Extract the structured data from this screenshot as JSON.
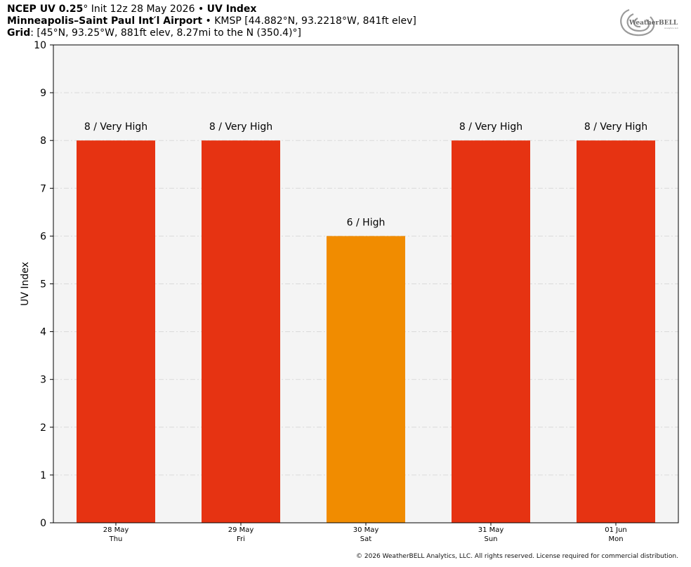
{
  "header": {
    "line1": {
      "model": "NCEP UV 0.25",
      "deg": "°",
      "init": " Init 12z 28 May 2026 • ",
      "product": "UV Index"
    },
    "line2": {
      "station": "Minneapolis–Saint Paul Int′l Airport",
      "info": " • KMSP [44.882°N, 93.2218°W, 841ft elev]"
    },
    "line3": {
      "label": "Grid",
      "info": ": [45°N, 93.25°W, 881ft elev, 8.27mi to the N (350.4)°]"
    }
  },
  "logo": {
    "text": "WeatherBELL",
    "sub": "Analytics LLC"
  },
  "copyright": "© 2026 WeatherBELL Analytics, LLC. All rights reserved. License required for commercial distribution.",
  "chart_data": {
    "type": "bar",
    "ylabel": "UV Index",
    "ylim": [
      0,
      10
    ],
    "yticks": [
      0,
      1,
      2,
      3,
      4,
      5,
      6,
      7,
      8,
      9,
      10
    ],
    "grid": true,
    "categories": [
      {
        "date": "28 May",
        "day": "Thu"
      },
      {
        "date": "29 May",
        "day": "Fri"
      },
      {
        "date": "30 May",
        "day": "Sat"
      },
      {
        "date": "31 May",
        "day": "Sun"
      },
      {
        "date": "01 Jun",
        "day": "Mon"
      }
    ],
    "values": [
      8,
      8,
      6,
      8,
      8
    ],
    "labels": [
      "8 / Very High",
      "8 / Very High",
      "6 / High",
      "8 / Very High",
      "8 / Very High"
    ],
    "colors": [
      "#e63312",
      "#e63312",
      "#f18c00",
      "#e63312",
      "#e63312"
    ],
    "plot_background": "#f4f4f4"
  }
}
